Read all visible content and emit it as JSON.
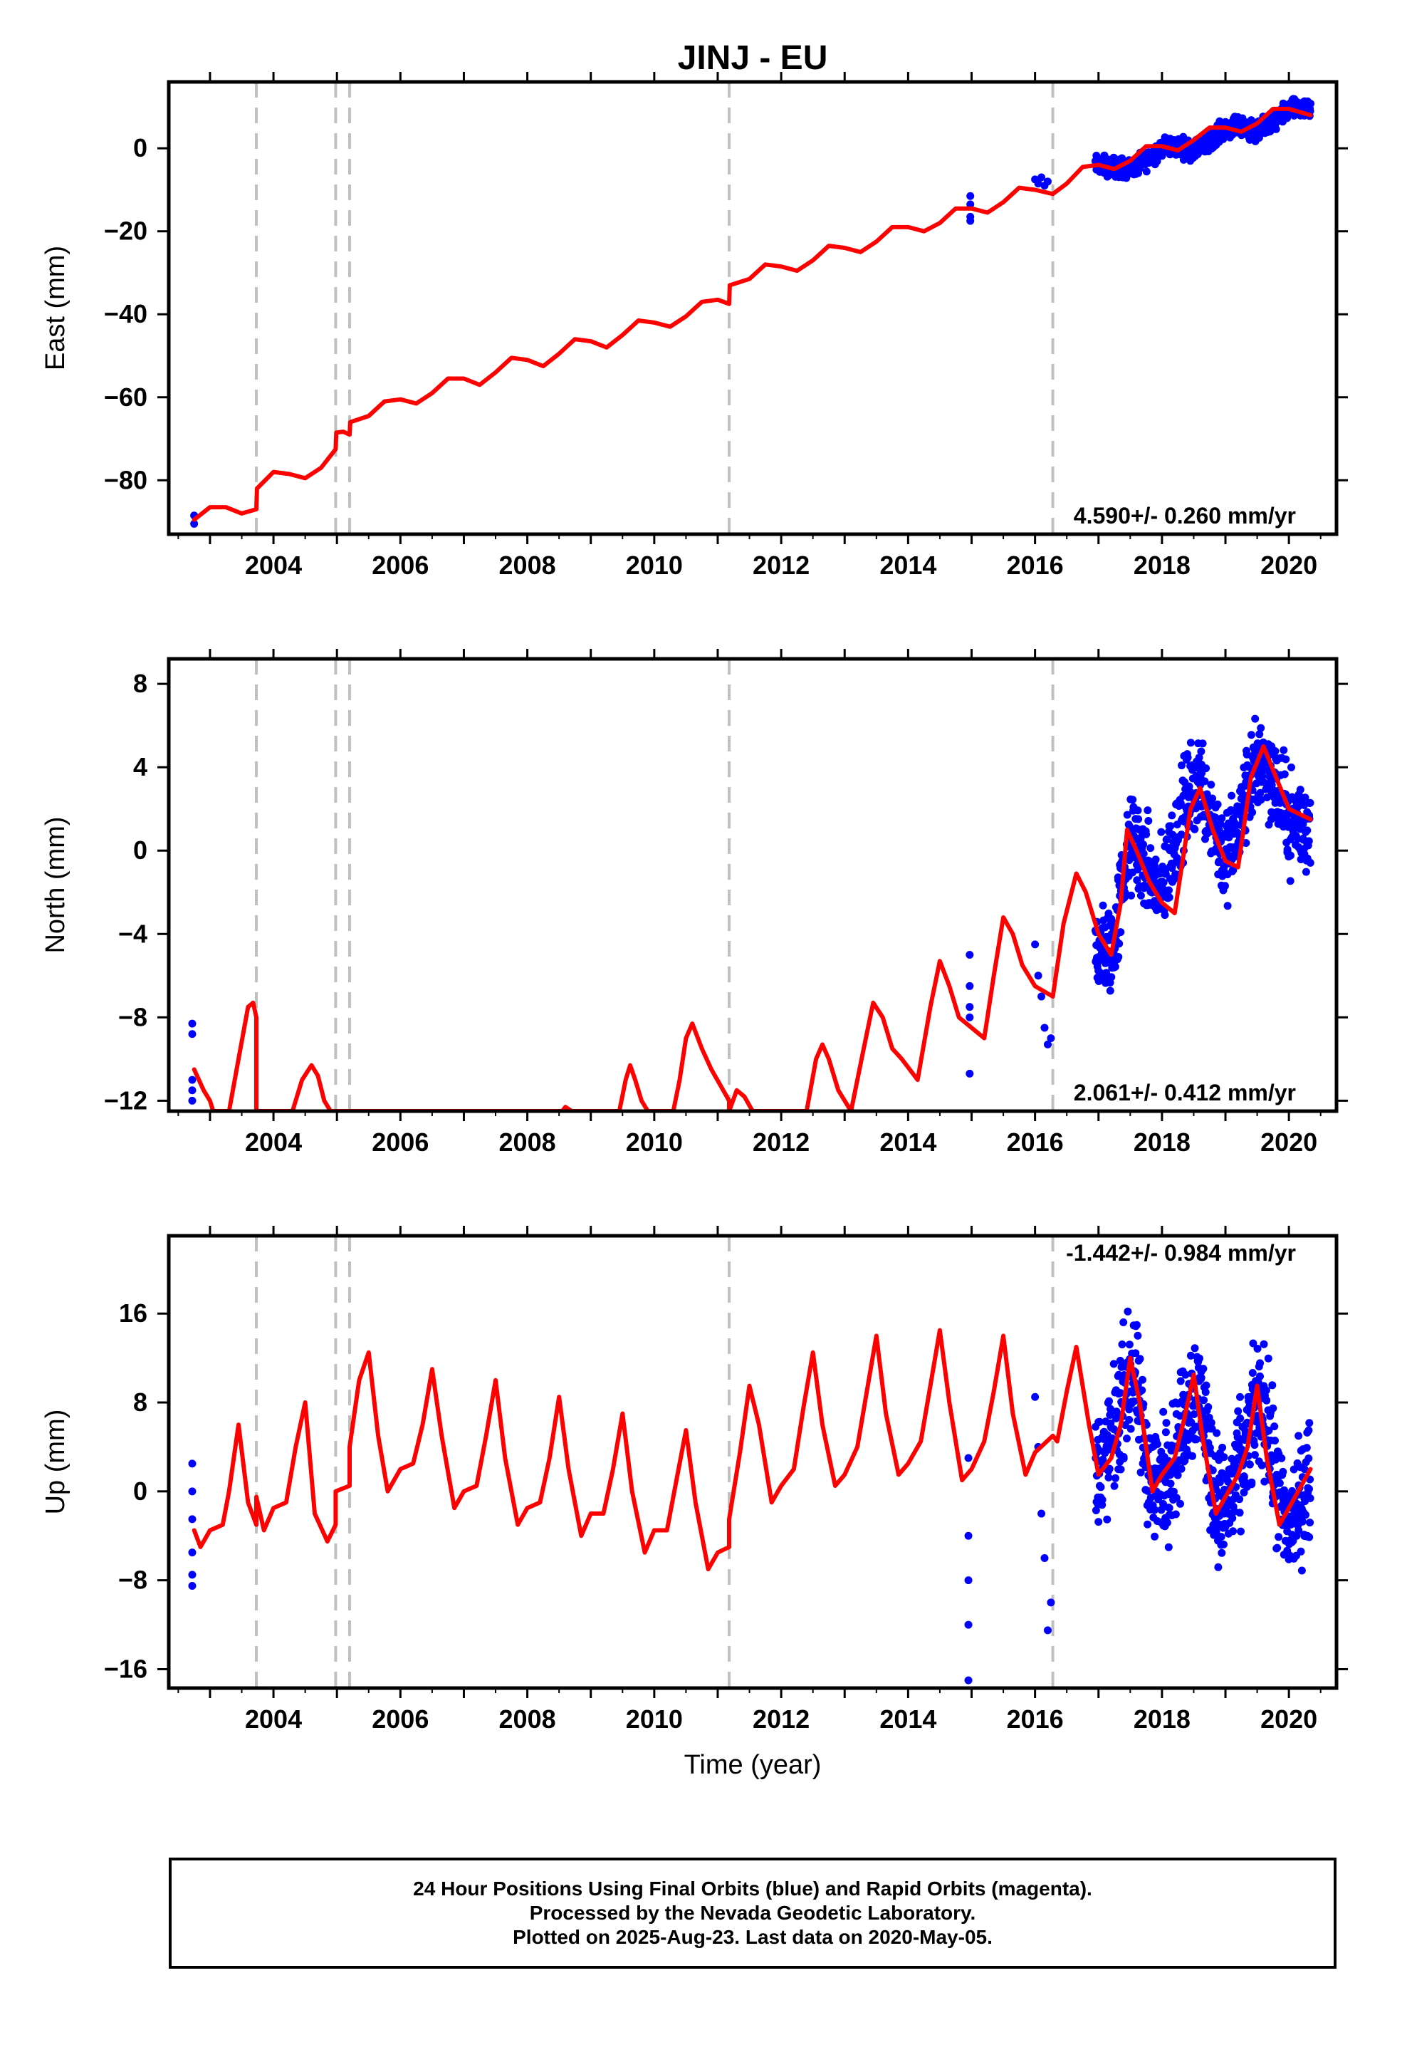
{
  "title": "JINJ - EU",
  "xlabel": "Time (year)",
  "x_ticks": [
    "2004",
    "2006",
    "2008",
    "2010",
    "2012",
    "2014",
    "2016",
    "2018",
    "2020"
  ],
  "colors": {
    "model": "#ff0000",
    "data": "#0000ff",
    "breaks": "#c0c0c0",
    "axes": "#000000"
  },
  "chart_data": [
    {
      "type": "scatter",
      "name": "east",
      "ylabel": "East (mm)",
      "xlim": [
        2002.35,
        2020.75
      ],
      "ylim": [
        -93,
        16
      ],
      "y_ticks": [
        0,
        -20,
        -40,
        -60,
        -80
      ],
      "velocity_label": "4.590+/- 0.260 mm/yr",
      "breaks": [
        2003.73,
        2004.98,
        2005.2,
        2011.18,
        2016.28
      ],
      "model": {
        "x": [
          2002.75,
          2003.0,
          2003.25,
          2003.5,
          2003.73,
          2003.74,
          2004.0,
          2004.25,
          2004.5,
          2004.75,
          2004.98,
          2004.99,
          2005.1,
          2005.2,
          2005.21,
          2005.5,
          2005.75,
          2006.0,
          2006.25,
          2006.5,
          2006.75,
          2007.0,
          2007.25,
          2007.5,
          2007.75,
          2008.0,
          2008.25,
          2008.5,
          2008.75,
          2009.0,
          2009.25,
          2009.5,
          2009.75,
          2010.0,
          2010.25,
          2010.5,
          2010.75,
          2011.0,
          2011.18,
          2011.19,
          2011.5,
          2011.75,
          2012.0,
          2012.25,
          2012.5,
          2012.75,
          2013.0,
          2013.25,
          2013.5,
          2013.75,
          2014.0,
          2014.25,
          2014.5,
          2014.75,
          2015.0,
          2015.25,
          2015.5,
          2015.75,
          2016.0,
          2016.28,
          2016.5,
          2016.75,
          2017.0,
          2017.25,
          2017.5,
          2017.75,
          2018.0,
          2018.25,
          2018.5,
          2018.75,
          2019.0,
          2019.25,
          2019.5,
          2019.75,
          2020.0,
          2020.34
        ],
        "y": [
          -89.5,
          -86.5,
          -86.5,
          -88.0,
          -87.0,
          -82.0,
          -78.0,
          -78.5,
          -79.5,
          -77.0,
          -72.5,
          -68.5,
          -68.3,
          -69.0,
          -66.0,
          -64.5,
          -61.0,
          -60.5,
          -61.5,
          -59.0,
          -55.5,
          -55.5,
          -57.0,
          -54.0,
          -50.5,
          -51.0,
          -52.5,
          -49.5,
          -46.0,
          -46.5,
          -48.0,
          -45.0,
          -41.5,
          -42.0,
          -43.0,
          -40.5,
          -37.0,
          -36.5,
          -37.5,
          -33.0,
          -31.5,
          -28.0,
          -28.5,
          -29.5,
          -27.0,
          -23.5,
          -24.0,
          -25.0,
          -22.5,
          -19.0,
          -19.0,
          -20.0,
          -18.0,
          -14.5,
          -14.5,
          -15.5,
          -13.0,
          -9.5,
          -10.0,
          -11.0,
          -8.5,
          -4.5,
          -4.0,
          -5.0,
          -3.0,
          0.5,
          0.5,
          -0.5,
          2.0,
          5.0,
          5.0,
          4.0,
          6.0,
          9.5,
          9.5,
          8.0
        ]
      },
      "data_points": [
        [
          2002.75,
          -88.5
        ],
        [
          2002.75,
          -90.5
        ],
        [
          2014.98,
          -11.5
        ],
        [
          2014.98,
          -13.5
        ],
        [
          2014.98,
          -16.5
        ],
        [
          2014.98,
          -17.5
        ],
        [
          2016.0,
          -7.5
        ],
        [
          2016.05,
          -8.5
        ],
        [
          2016.1,
          -7.0
        ],
        [
          2016.15,
          -9.0
        ],
        [
          2016.2,
          -8.0
        ]
      ],
      "data_band": {
        "x": [
          2016.95,
          2017.25,
          2017.5,
          2017.75,
          2018.0,
          2018.25,
          2018.5,
          2018.75,
          2019.0,
          2019.25,
          2019.5,
          2019.75,
          2020.0,
          2020.34
        ],
        "y": [
          -4.0,
          -4.5,
          -5.0,
          -3.0,
          0.5,
          0.5,
          -0.5,
          2.0,
          5.0,
          5.0,
          4.0,
          6.0,
          9.5,
          9.0
        ],
        "spread": [
          2.5,
          2.5,
          2.5,
          2.5,
          2.5,
          2.5,
          2.5,
          2.5,
          2.5,
          2.5,
          2.5,
          2.5,
          2.5,
          2.5
        ]
      }
    },
    {
      "type": "scatter",
      "name": "north",
      "ylabel": "North (mm)",
      "xlim": [
        2002.35,
        2020.75
      ],
      "ylim": [
        -12.5,
        9.2
      ],
      "y_ticks": [
        8,
        4,
        0,
        -4,
        -8,
        -12
      ],
      "velocity_label": "2.061+/- 0.412 mm/yr",
      "breaks": [
        2003.73,
        2004.98,
        2005.2,
        2011.18,
        2016.28
      ],
      "model": {
        "x": [
          2002.75,
          2002.9,
          2003.0,
          2003.05,
          2003.1,
          2003.3,
          2003.45,
          2003.6,
          2003.68,
          2003.73,
          2003.73,
          2004.3,
          2004.45,
          2004.6,
          2004.7,
          2004.8,
          2004.9,
          2004.98,
          2004.98,
          2008.55,
          2008.6,
          2008.7,
          2009.45,
          2009.55,
          2009.62,
          2009.7,
          2009.8,
          2009.9,
          2010.3,
          2010.4,
          2010.5,
          2010.6,
          2010.75,
          2010.9,
          2011.05,
          2011.18,
          2011.18,
          2011.3,
          2011.42,
          2011.55,
          2011.7,
          2012.4,
          2012.55,
          2012.65,
          2012.75,
          2012.9,
          2013.1,
          2013.3,
          2013.45,
          2013.6,
          2013.75,
          2013.9,
          2014.15,
          2014.35,
          2014.5,
          2014.65,
          2014.8,
          2015.0,
          2015.2,
          2015.35,
          2015.5,
          2015.65,
          2015.8,
          2016.0,
          2016.28,
          2016.45,
          2016.65,
          2016.8,
          2017.0,
          2017.2,
          2017.35,
          2017.45,
          2017.6,
          2017.8,
          2018.0,
          2018.2,
          2018.45,
          2018.6,
          2018.8,
          2019.0,
          2019.2,
          2019.4,
          2019.6,
          2019.8,
          2020.0,
          2020.34
        ],
        "y": [
          -10.5,
          -11.5,
          -12.0,
          -12.5,
          -12.5,
          -12.5,
          -10.0,
          -7.5,
          -7.3,
          -8.0,
          -12.5,
          -12.5,
          -11.0,
          -10.3,
          -10.8,
          -12.0,
          -12.5,
          -12.5,
          -12.5,
          -12.5,
          -12.3,
          -12.5,
          -12.5,
          -11.0,
          -10.3,
          -11.0,
          -12.0,
          -12.5,
          -12.5,
          -11.0,
          -9.0,
          -8.3,
          -9.5,
          -10.5,
          -11.3,
          -12.0,
          -12.5,
          -11.5,
          -11.8,
          -12.5,
          -12.5,
          -12.5,
          -10.0,
          -9.3,
          -10.0,
          -11.5,
          -12.5,
          -9.5,
          -7.3,
          -8.0,
          -9.5,
          -10.0,
          -11.0,
          -7.5,
          -5.3,
          -6.5,
          -8.0,
          -8.5,
          -9.0,
          -6.0,
          -3.2,
          -4.0,
          -5.5,
          -6.5,
          -7.0,
          -3.5,
          -1.1,
          -2.0,
          -4.0,
          -5.0,
          -2.5,
          1.0,
          0.0,
          -1.5,
          -2.5,
          -3.0,
          2.0,
          3.0,
          1.0,
          -0.5,
          -0.8,
          3.5,
          5.0,
          3.5,
          2.0,
          1.5
        ]
      },
      "data_points": [
        [
          2002.72,
          -8.3
        ],
        [
          2002.72,
          -8.8
        ],
        [
          2002.72,
          -11.0
        ],
        [
          2002.72,
          -11.5
        ],
        [
          2002.72,
          -12.0
        ],
        [
          2014.97,
          -5.0
        ],
        [
          2014.97,
          -6.5
        ],
        [
          2014.97,
          -7.5
        ],
        [
          2014.97,
          -8.0
        ],
        [
          2014.97,
          -10.7
        ],
        [
          2016.0,
          -4.5
        ],
        [
          2016.05,
          -6.0
        ],
        [
          2016.1,
          -7.0
        ],
        [
          2016.15,
          -8.5
        ],
        [
          2016.2,
          -9.3
        ],
        [
          2016.25,
          -9.0
        ]
      ],
      "data_band": {
        "x": [
          2016.95,
          2017.1,
          2017.25,
          2017.4,
          2017.55,
          2017.7,
          2017.85,
          2018.0,
          2018.2,
          2018.4,
          2018.6,
          2018.8,
          2019.0,
          2019.2,
          2019.4,
          2019.6,
          2019.8,
          2020.0,
          2020.34
        ],
        "y": [
          -4.5,
          -5.0,
          -4.5,
          -1.0,
          0.5,
          -0.5,
          -1.5,
          -2.0,
          0.5,
          2.5,
          3.5,
          1.5,
          -0.5,
          1.0,
          3.5,
          4.5,
          3.0,
          1.5,
          1.0
        ],
        "spread": [
          2.5,
          2.5,
          2.5,
          2.5,
          2.5,
          2.5,
          2.5,
          2.5,
          2.5,
          2.5,
          2.5,
          2.5,
          2.5,
          2.5,
          2.5,
          2.5,
          2.5,
          2.5,
          2.5
        ]
      }
    },
    {
      "type": "scatter",
      "name": "up",
      "ylabel": "Up (mm)",
      "xlim": [
        2002.35,
        2020.75
      ],
      "ylim": [
        -17.7,
        23
      ],
      "y_ticks": [
        16,
        8,
        0,
        -8,
        -16
      ],
      "velocity_label": "-1.442+/- 0.984 mm/yr",
      "breaks": [
        2003.73,
        2004.98,
        2005.2,
        2011.18,
        2016.28
      ],
      "model": {
        "x": [
          2002.75,
          2002.85,
          2003.0,
          2003.2,
          2003.3,
          2003.45,
          2003.6,
          2003.73,
          2003.73,
          2003.85,
          2004.0,
          2004.2,
          2004.35,
          2004.5,
          2004.65,
          2004.85,
          2004.98,
          2004.98,
          2005.2,
          2005.2,
          2005.35,
          2005.5,
          2005.65,
          2005.8,
          2006.0,
          2006.2,
          2006.35,
          2006.5,
          2006.65,
          2006.85,
          2007.0,
          2007.2,
          2007.35,
          2007.5,
          2007.65,
          2007.85,
          2008.0,
          2008.2,
          2008.35,
          2008.5,
          2008.65,
          2008.85,
          2009.0,
          2009.2,
          2009.35,
          2009.5,
          2009.65,
          2009.85,
          2010.0,
          2010.2,
          2010.35,
          2010.5,
          2010.65,
          2010.85,
          2011.0,
          2011.18,
          2011.18,
          2011.35,
          2011.5,
          2011.65,
          2011.85,
          2012.0,
          2012.2,
          2012.35,
          2012.5,
          2012.65,
          2012.85,
          2013.0,
          2013.2,
          2013.35,
          2013.5,
          2013.65,
          2013.85,
          2014.0,
          2014.2,
          2014.35,
          2014.5,
          2014.65,
          2014.85,
          2015.0,
          2015.2,
          2015.35,
          2015.5,
          2015.65,
          2015.85,
          2016.0,
          2016.28,
          2016.35,
          2016.5,
          2016.65,
          2016.85,
          2017.0,
          2017.2,
          2017.35,
          2017.5,
          2017.65,
          2017.85,
          2018.0,
          2018.2,
          2018.35,
          2018.5,
          2018.65,
          2018.85,
          2019.0,
          2019.2,
          2019.35,
          2019.5,
          2019.65,
          2019.85,
          2020.0,
          2020.34
        ],
        "y": [
          -3.5,
          -5.0,
          -3.5,
          -3.0,
          0.0,
          6.0,
          -1.0,
          -3.0,
          -0.5,
          -3.5,
          -1.5,
          -1.0,
          4.0,
          8.0,
          -2.0,
          -4.5,
          -3.0,
          0.0,
          0.5,
          4.0,
          10.0,
          12.5,
          5.0,
          0.0,
          2.0,
          2.5,
          6.0,
          11.0,
          5.0,
          -1.5,
          0.0,
          0.5,
          5.0,
          10.0,
          3.0,
          -3.0,
          -1.5,
          -1.0,
          3.0,
          8.5,
          2.0,
          -4.0,
          -2.0,
          -2.0,
          2.0,
          7.0,
          0.0,
          -5.5,
          -3.5,
          -3.5,
          1.0,
          5.5,
          -1.0,
          -7.0,
          -5.5,
          -5.0,
          -2.5,
          3.5,
          9.5,
          6.0,
          -1.0,
          0.5,
          2.0,
          7.5,
          12.5,
          6.0,
          0.5,
          1.5,
          4.0,
          9.0,
          14.0,
          7.0,
          1.5,
          2.5,
          4.5,
          9.5,
          14.5,
          8.0,
          1.0,
          2.0,
          4.5,
          9.0,
          14.0,
          7.0,
          1.5,
          3.5,
          5.0,
          4.5,
          9.0,
          13.0,
          6.0,
          1.5,
          3.0,
          6.0,
          12.0,
          8.0,
          0.0,
          1.5,
          3.0,
          6.5,
          10.5,
          4.5,
          -2.0,
          -0.5,
          1.5,
          4.0,
          9.5,
          3.0,
          -3.0,
          -1.5,
          2.0
        ]
      },
      "data_points": [
        [
          2002.72,
          2.5
        ],
        [
          2002.72,
          0.0
        ],
        [
          2002.72,
          -2.5
        ],
        [
          2002.72,
          -5.5
        ],
        [
          2002.72,
          -7.5
        ],
        [
          2002.72,
          -8.5
        ],
        [
          2014.95,
          3.0
        ],
        [
          2014.95,
          -4.0
        ],
        [
          2014.95,
          -8.0
        ],
        [
          2014.95,
          -12.0
        ],
        [
          2014.95,
          -17.0
        ],
        [
          2016.0,
          8.5
        ],
        [
          2016.05,
          4.0
        ],
        [
          2016.1,
          -2.0
        ],
        [
          2016.15,
          -6.0
        ],
        [
          2016.2,
          -12.5
        ],
        [
          2016.25,
          -10.0
        ]
      ],
      "data_band": {
        "x": [
          2016.95,
          2017.1,
          2017.25,
          2017.4,
          2017.55,
          2017.7,
          2017.85,
          2018.0,
          2018.15,
          2018.3,
          2018.45,
          2018.6,
          2018.75,
          2018.9,
          2019.05,
          2019.2,
          2019.35,
          2019.5,
          2019.65,
          2019.8,
          2019.95,
          2020.1,
          2020.34
        ],
        "y": [
          1.5,
          3.0,
          5.0,
          9.0,
          11.0,
          5.0,
          0.5,
          1.0,
          2.5,
          5.0,
          8.5,
          9.5,
          3.0,
          -1.5,
          -1.0,
          1.5,
          4.0,
          8.0,
          7.0,
          0.0,
          -3.0,
          -2.0,
          1.0
        ],
        "spread": [
          6.0,
          6.0,
          6.0,
          6.0,
          6.0,
          6.0,
          6.0,
          6.0,
          6.0,
          6.0,
          6.0,
          6.0,
          6.0,
          6.0,
          6.0,
          6.0,
          6.0,
          6.0,
          6.0,
          6.0,
          6.0,
          6.0,
          6.0
        ]
      }
    }
  ],
  "footer": {
    "line1": "24 Hour Positions Using Final Orbits (blue) and Rapid Orbits (magenta).",
    "line2": "Processed by the Nevada Geodetic Laboratory.",
    "line3": "Plotted on 2025-Aug-23. Last data on 2020-May-05."
  }
}
